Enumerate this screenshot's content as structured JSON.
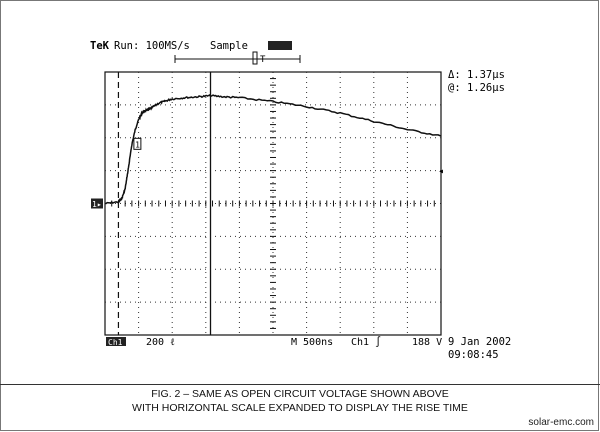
{
  "header": {
    "brand": "TeK",
    "run": "Run: 100MS/s",
    "mode": "Sample",
    "trig_marker": "T"
  },
  "readouts": {
    "delta": "Δ: 1.37μs",
    "at": "@: 1.26μs"
  },
  "bottom_bar": {
    "ch1_tag": "Ch1",
    "ch1_scale": "200 ℓ",
    "timebase": "M 500ns",
    "trigger_src": "Ch1 ∫",
    "trigger_level": "188 V",
    "date": "9 Jan 2002",
    "time": "09:08:45"
  },
  "markers": {
    "ground": "1▸",
    "cursor1": "1"
  },
  "caption": {
    "line1": "FIG. 2 – SAME AS OPEN CIRCUIT VOLTAGE SHOWN ABOVE",
    "line2": "WITH HORIZONTAL SCALE EXPANDED TO DISPLAY THE RISE TIME"
  },
  "footer": "solar-emc.com",
  "chart_data": {
    "type": "line",
    "title": "",
    "xlabel": "",
    "ylabel": "",
    "x_unit": "μs",
    "y_unit": "div",
    "xlim": [
      0,
      5
    ],
    "ylim": [
      -4,
      4
    ],
    "x_divisions": 10,
    "y_divisions": 8,
    "grid": true,
    "cursor_vertical_x": [
      0.2,
      1.57
    ],
    "series": [
      {
        "name": "",
        "x": [
          0,
          0.2,
          0.25,
          0.3,
          0.35,
          0.4,
          0.45,
          0.5,
          0.55,
          0.6,
          0.65,
          0.7,
          0.8,
          0.9,
          1.0,
          1.2,
          1.4,
          1.57,
          1.8,
          2.0,
          2.5,
          3.0,
          3.5,
          4.0,
          4.5,
          5.0
        ],
        "y": [
          0,
          0.05,
          0.15,
          0.45,
          1.1,
          1.8,
          2.25,
          2.55,
          2.75,
          2.82,
          2.86,
          2.92,
          3.05,
          3.12,
          3.18,
          3.22,
          3.25,
          3.28,
          3.24,
          3.22,
          3.1,
          2.95,
          2.75,
          2.5,
          2.25,
          2.05
        ]
      }
    ]
  }
}
